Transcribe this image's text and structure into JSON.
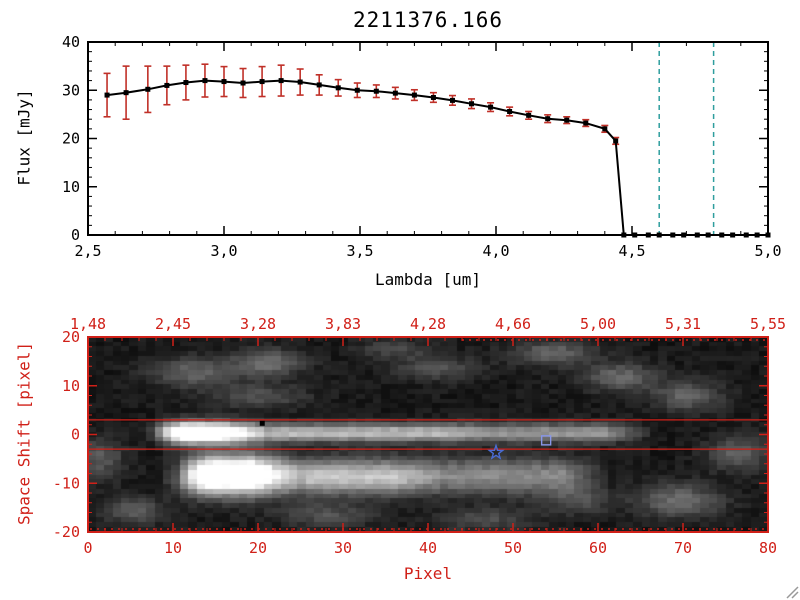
{
  "title": "2211376.166",
  "colors": {
    "spectrum_line": "#000000",
    "error_bar": "#c03028",
    "band_line": "#2e9e9e",
    "zero_line": "#d02018",
    "frame_bottom": "#d02018",
    "marker_star": "#4a6cd4",
    "marker_square": "#8896e8",
    "marker_black": "#000000"
  },
  "chart_data": [
    {
      "type": "line",
      "title": "2211376.166",
      "xlabel": "Lambda [um]",
      "ylabel": "Flux [mJy]",
      "xlim": [
        2.5,
        5.0
      ],
      "ylim": [
        0,
        40
      ],
      "xtick_values": [
        2.5,
        3.0,
        3.5,
        4.0,
        4.5,
        5.0
      ],
      "xtick_labels": [
        "2,5",
        "3,0",
        "3,5",
        "4,0",
        "4,5",
        "5,0"
      ],
      "ytick_values": [
        0,
        10,
        20,
        30,
        40
      ],
      "ytick_labels": [
        "0",
        "10",
        "20",
        "30",
        "40"
      ],
      "x_minor_step": 0.1,
      "y_minor_step": 2,
      "vlines": [
        4.6,
        4.8
      ],
      "hline_zero": 0,
      "points": [
        {
          "x": 2.57,
          "y": 29.0,
          "e": 4.5
        },
        {
          "x": 2.64,
          "y": 29.5,
          "e": 5.5
        },
        {
          "x": 2.72,
          "y": 30.2,
          "e": 4.8
        },
        {
          "x": 2.79,
          "y": 31.0,
          "e": 4.0
        },
        {
          "x": 2.86,
          "y": 31.6,
          "e": 3.6
        },
        {
          "x": 2.93,
          "y": 32.0,
          "e": 3.4
        },
        {
          "x": 3.0,
          "y": 31.8,
          "e": 3.1
        },
        {
          "x": 3.07,
          "y": 31.5,
          "e": 3.0
        },
        {
          "x": 3.14,
          "y": 31.8,
          "e": 3.1
        },
        {
          "x": 3.21,
          "y": 32.0,
          "e": 3.2
        },
        {
          "x": 3.28,
          "y": 31.7,
          "e": 2.7
        },
        {
          "x": 3.35,
          "y": 31.1,
          "e": 2.1
        },
        {
          "x": 3.42,
          "y": 30.5,
          "e": 1.7
        },
        {
          "x": 3.49,
          "y": 30.0,
          "e": 1.5
        },
        {
          "x": 3.56,
          "y": 29.8,
          "e": 1.3
        },
        {
          "x": 3.63,
          "y": 29.4,
          "e": 1.2
        },
        {
          "x": 3.7,
          "y": 29.0,
          "e": 1.1
        },
        {
          "x": 3.77,
          "y": 28.5,
          "e": 1.0
        },
        {
          "x": 3.84,
          "y": 27.9,
          "e": 1.0
        },
        {
          "x": 3.91,
          "y": 27.2,
          "e": 1.0
        },
        {
          "x": 3.98,
          "y": 26.5,
          "e": 0.9
        },
        {
          "x": 4.05,
          "y": 25.6,
          "e": 0.9
        },
        {
          "x": 4.12,
          "y": 24.8,
          "e": 0.8
        },
        {
          "x": 4.19,
          "y": 24.1,
          "e": 0.8
        },
        {
          "x": 4.26,
          "y": 23.8,
          "e": 0.7
        },
        {
          "x": 4.33,
          "y": 23.2,
          "e": 0.7
        },
        {
          "x": 4.4,
          "y": 22.0,
          "e": 0.7
        },
        {
          "x": 4.44,
          "y": 19.5,
          "e": 0.7
        },
        {
          "x": 4.47,
          "y": 0,
          "e": 0
        },
        {
          "x": 4.51,
          "y": 0,
          "e": 0
        },
        {
          "x": 4.56,
          "y": 0,
          "e": 0
        },
        {
          "x": 4.6,
          "y": 0,
          "e": 0
        },
        {
          "x": 4.65,
          "y": 0,
          "e": 0
        },
        {
          "x": 4.69,
          "y": 0,
          "e": 0
        },
        {
          "x": 4.74,
          "y": 0,
          "e": 0
        },
        {
          "x": 4.78,
          "y": 0,
          "e": 0
        },
        {
          "x": 4.83,
          "y": 0,
          "e": 0
        },
        {
          "x": 4.87,
          "y": 0,
          "e": 0
        },
        {
          "x": 4.92,
          "y": 0,
          "e": 0
        },
        {
          "x": 4.96,
          "y": 0,
          "e": 0
        },
        {
          "x": 5.0,
          "y": 0,
          "e": 0
        }
      ]
    },
    {
      "type": "heatmap",
      "xlabel": "Pixel",
      "ylabel": "Space Shift [pixel]",
      "xlim": [
        0,
        80
      ],
      "ylim": [
        -20,
        20
      ],
      "xtick_values": [
        0,
        10,
        20,
        30,
        40,
        50,
        60,
        70,
        80
      ],
      "xtick_labels": [
        "0",
        "10",
        "20",
        "30",
        "40",
        "50",
        "60",
        "70",
        "80"
      ],
      "ytick_values": [
        -20,
        -10,
        0,
        10,
        20
      ],
      "ytick_labels": [
        "-20",
        "-10",
        "0",
        "10",
        "20"
      ],
      "x_minor_step": 2,
      "y_minor_step": 2,
      "top_axis_labels": [
        "1,48",
        "2,45",
        "3,28",
        "3,83",
        "4,28",
        "4,66",
        "5,00",
        "5,31",
        "5,55"
      ],
      "aperture_y": [
        3,
        -3
      ],
      "markers": [
        {
          "shape": "star",
          "x": 48,
          "y": -3.7
        },
        {
          "shape": "open-square",
          "x": 53.9,
          "y": -1.2
        },
        {
          "shape": "filled-square",
          "x": 20.5,
          "y": 2.3
        }
      ],
      "image_model": {
        "base": 0.05,
        "noise": 0.09,
        "streaks": [
          {
            "x0": 8,
            "x1": 65,
            "y": 0.3,
            "sy": 1.4,
            "amp": 0.5
          },
          {
            "x0": 9,
            "x1": 19,
            "y": 0.3,
            "sy": 1.7,
            "amp": 0.8
          },
          {
            "x0": 20,
            "x1": 45,
            "y": 0.3,
            "sy": 1.2,
            "amp": 0.15
          },
          {
            "x0": 10,
            "x1": 60,
            "y": -8.8,
            "sy": 2.6,
            "amp": 0.45
          },
          {
            "x0": 12,
            "x1": 23,
            "y": -8.5,
            "sy": 3.0,
            "amp": 0.85
          },
          {
            "x0": 24,
            "x1": 40,
            "y": -9.2,
            "sy": 2.4,
            "amp": 0.25
          }
        ],
        "blobs": [
          {
            "x": 12,
            "y": 13,
            "sx": 3.5,
            "sy": 2.2,
            "amp": 0.3
          },
          {
            "x": 21,
            "y": 15,
            "sx": 3.0,
            "sy": 2.0,
            "amp": 0.34
          },
          {
            "x": 20,
            "y": 8,
            "sx": 4.0,
            "sy": 1.8,
            "amp": 0.22
          },
          {
            "x": 41,
            "y": 14,
            "sx": 3.5,
            "sy": 1.8,
            "amp": 0.22
          },
          {
            "x": 55,
            "y": 17,
            "sx": 3.5,
            "sy": 1.8,
            "amp": 0.3
          },
          {
            "x": 63,
            "y": 12,
            "sx": 3.0,
            "sy": 2.0,
            "amp": 0.32
          },
          {
            "x": 71,
            "y": 8,
            "sx": 2.8,
            "sy": 2.2,
            "amp": 0.3
          },
          {
            "x": 77,
            "y": -4,
            "sx": 2.5,
            "sy": 2.5,
            "amp": 0.28
          },
          {
            "x": 70,
            "y": -14,
            "sx": 3.5,
            "sy": 2.5,
            "amp": 0.34
          },
          {
            "x": 58,
            "y": -14,
            "sx": 3.0,
            "sy": 2.0,
            "amp": 0.2
          },
          {
            "x": 5,
            "y": -16,
            "sx": 2.5,
            "sy": 2.0,
            "amp": 0.28
          },
          {
            "x": 28,
            "y": -17,
            "sx": 4.0,
            "sy": 1.8,
            "amp": 0.22
          },
          {
            "x": 47,
            "y": -18,
            "sx": 4.0,
            "sy": 1.8,
            "amp": 0.2
          },
          {
            "x": 1,
            "y": -5,
            "sx": 2.0,
            "sy": 3.0,
            "amp": 0.26
          },
          {
            "x": 36,
            "y": 18,
            "sx": 3.0,
            "sy": 1.5,
            "amp": 0.18
          }
        ]
      }
    }
  ]
}
